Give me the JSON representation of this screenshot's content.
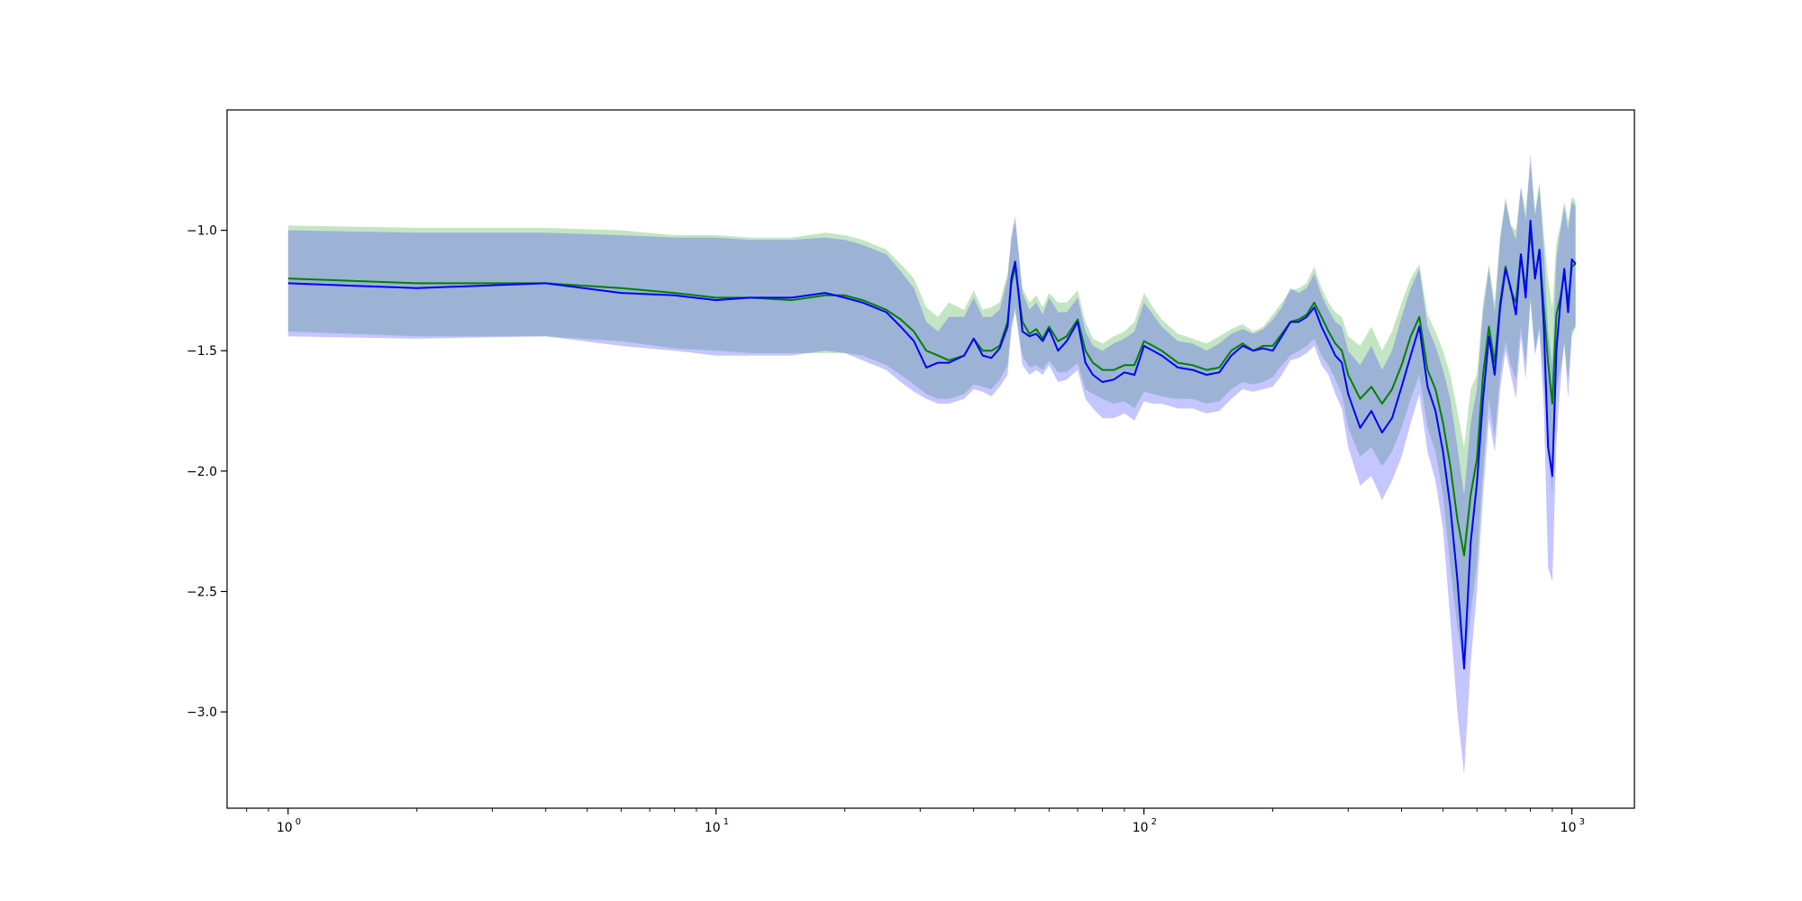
{
  "chart_data": {
    "type": "line",
    "title": "",
    "xlabel": "",
    "ylabel": "",
    "xscale": "log",
    "xlim": [
      0.72,
      1400
    ],
    "ylim": [
      -3.4,
      -0.5
    ],
    "grid": false,
    "legend": "none",
    "xticks": [
      {
        "value": 1,
        "base": "10",
        "exp": "0"
      },
      {
        "value": 10,
        "base": "10",
        "exp": "1"
      },
      {
        "value": 100,
        "base": "10",
        "exp": "2"
      },
      {
        "value": 1000,
        "base": "10",
        "exp": "3"
      }
    ],
    "yticks": [
      {
        "value": -1.0,
        "label": "−1.0"
      },
      {
        "value": -1.5,
        "label": "−1.5"
      },
      {
        "value": -2.0,
        "label": "−2.0"
      },
      {
        "value": -2.5,
        "label": "−2.5"
      },
      {
        "value": -3.0,
        "label": "−3.0"
      }
    ],
    "series": [
      {
        "color": "#008000",
        "band_color": "#2ca02c",
        "band_opacity": 0.28,
        "x": [
          1,
          2,
          4,
          6,
          8,
          10,
          12,
          15,
          18,
          20,
          22,
          25,
          27,
          29,
          31,
          33,
          35,
          38,
          40,
          42,
          44,
          46,
          48,
          49,
          50,
          52,
          54,
          56,
          58,
          60,
          63,
          66,
          70,
          73,
          76,
          80,
          85,
          90,
          95,
          100,
          105,
          110,
          120,
          130,
          140,
          150,
          160,
          170,
          180,
          190,
          200,
          210,
          220,
          230,
          240,
          250,
          260,
          270,
          280,
          290,
          300,
          320,
          340,
          360,
          380,
          400,
          420,
          440,
          460,
          480,
          500,
          520,
          540,
          560,
          580,
          600,
          620,
          640,
          660,
          680,
          700,
          720,
          740,
          760,
          780,
          800,
          820,
          840,
          860,
          880,
          900,
          920,
          940,
          960,
          980,
          1000,
          1020
        ],
        "y": [
          -1.2,
          -1.22,
          -1.22,
          -1.24,
          -1.26,
          -1.28,
          -1.28,
          -1.29,
          -1.27,
          -1.27,
          -1.29,
          -1.33,
          -1.37,
          -1.42,
          -1.5,
          -1.52,
          -1.54,
          -1.52,
          -1.45,
          -1.5,
          -1.5,
          -1.48,
          -1.38,
          -1.22,
          -1.15,
          -1.38,
          -1.43,
          -1.41,
          -1.45,
          -1.4,
          -1.46,
          -1.44,
          -1.37,
          -1.5,
          -1.55,
          -1.58,
          -1.58,
          -1.56,
          -1.56,
          -1.46,
          -1.48,
          -1.5,
          -1.55,
          -1.56,
          -1.58,
          -1.57,
          -1.5,
          -1.47,
          -1.5,
          -1.48,
          -1.48,
          -1.43,
          -1.38,
          -1.37,
          -1.35,
          -1.3,
          -1.36,
          -1.42,
          -1.47,
          -1.5,
          -1.6,
          -1.7,
          -1.65,
          -1.72,
          -1.66,
          -1.56,
          -1.44,
          -1.36,
          -1.58,
          -1.66,
          -1.8,
          -1.98,
          -2.2,
          -2.35,
          -2.1,
          -1.95,
          -1.6,
          -1.4,
          -1.55,
          -1.3,
          -1.15,
          -1.25,
          -1.3,
          -1.1,
          -1.25,
          -1.0,
          -1.2,
          -1.08,
          -1.32,
          -1.55,
          -1.72,
          -1.35,
          -1.28,
          -1.18,
          -1.3,
          -1.15,
          -1.14
        ],
        "upper": [
          -0.98,
          -0.99,
          -0.99,
          -1.0,
          -1.02,
          -1.02,
          -1.03,
          -1.03,
          -1.01,
          -1.02,
          -1.04,
          -1.08,
          -1.14,
          -1.2,
          -1.32,
          -1.36,
          -1.3,
          -1.33,
          -1.25,
          -1.33,
          -1.32,
          -1.3,
          -1.18,
          -1.04,
          -0.96,
          -1.24,
          -1.3,
          -1.27,
          -1.32,
          -1.26,
          -1.3,
          -1.3,
          -1.25,
          -1.38,
          -1.45,
          -1.47,
          -1.44,
          -1.42,
          -1.38,
          -1.26,
          -1.32,
          -1.37,
          -1.43,
          -1.45,
          -1.47,
          -1.44,
          -1.41,
          -1.39,
          -1.42,
          -1.4,
          -1.35,
          -1.3,
          -1.25,
          -1.24,
          -1.22,
          -1.15,
          -1.24,
          -1.3,
          -1.34,
          -1.36,
          -1.44,
          -1.48,
          -1.4,
          -1.5,
          -1.42,
          -1.3,
          -1.2,
          -1.14,
          -1.35,
          -1.42,
          -1.5,
          -1.6,
          -1.75,
          -1.9,
          -1.66,
          -1.6,
          -1.3,
          -1.14,
          -1.3,
          -1.02,
          -0.86,
          -0.98,
          -1.0,
          -0.82,
          -0.92,
          -0.72,
          -0.92,
          -0.8,
          -1.02,
          -1.2,
          -1.32,
          -1.05,
          -0.98,
          -0.88,
          -0.96,
          -0.86,
          -0.88
        ],
        "lower": [
          -1.42,
          -1.44,
          -1.44,
          -1.46,
          -1.49,
          -1.5,
          -1.51,
          -1.51,
          -1.51,
          -1.51,
          -1.52,
          -1.56,
          -1.6,
          -1.64,
          -1.68,
          -1.7,
          -1.7,
          -1.68,
          -1.64,
          -1.65,
          -1.66,
          -1.62,
          -1.56,
          -1.42,
          -1.34,
          -1.52,
          -1.57,
          -1.56,
          -1.58,
          -1.54,
          -1.59,
          -1.59,
          -1.55,
          -1.66,
          -1.68,
          -1.7,
          -1.72,
          -1.71,
          -1.74,
          -1.67,
          -1.68,
          -1.69,
          -1.7,
          -1.7,
          -1.72,
          -1.71,
          -1.66,
          -1.63,
          -1.64,
          -1.63,
          -1.61,
          -1.56,
          -1.52,
          -1.5,
          -1.48,
          -1.45,
          -1.52,
          -1.56,
          -1.62,
          -1.68,
          -1.82,
          -1.94,
          -1.9,
          -1.98,
          -1.92,
          -1.82,
          -1.7,
          -1.6,
          -1.82,
          -1.92,
          -2.1,
          -2.4,
          -2.65,
          -2.82,
          -2.6,
          -2.38,
          -2.0,
          -1.7,
          -1.86,
          -1.6,
          -1.46,
          -1.56,
          -1.62,
          -1.4,
          -1.56,
          -1.3,
          -1.5,
          -1.4,
          -1.64,
          -1.9,
          -2.1,
          -1.66,
          -1.58,
          -1.48,
          -1.62,
          -1.44,
          -1.4
        ]
      },
      {
        "color": "#0000ff",
        "band_color": "#4040ff",
        "band_opacity": 0.3,
        "x": [
          1,
          2,
          4,
          6,
          8,
          10,
          12,
          15,
          18,
          20,
          22,
          25,
          27,
          29,
          31,
          33,
          35,
          38,
          40,
          42,
          44,
          46,
          48,
          49,
          50,
          52,
          54,
          56,
          58,
          60,
          63,
          66,
          70,
          73,
          76,
          80,
          85,
          90,
          95,
          100,
          105,
          110,
          120,
          130,
          140,
          150,
          160,
          170,
          180,
          190,
          200,
          210,
          220,
          230,
          240,
          250,
          260,
          270,
          280,
          290,
          300,
          320,
          340,
          360,
          380,
          400,
          420,
          440,
          460,
          480,
          500,
          520,
          540,
          560,
          580,
          600,
          620,
          640,
          660,
          680,
          700,
          720,
          740,
          760,
          780,
          800,
          820,
          840,
          860,
          880,
          900,
          920,
          940,
          960,
          980,
          1000,
          1020
        ],
        "y": [
          -1.22,
          -1.24,
          -1.22,
          -1.26,
          -1.27,
          -1.29,
          -1.28,
          -1.28,
          -1.26,
          -1.28,
          -1.3,
          -1.34,
          -1.4,
          -1.46,
          -1.57,
          -1.55,
          -1.55,
          -1.52,
          -1.45,
          -1.52,
          -1.53,
          -1.49,
          -1.4,
          -1.2,
          -1.13,
          -1.42,
          -1.44,
          -1.43,
          -1.46,
          -1.41,
          -1.5,
          -1.46,
          -1.38,
          -1.55,
          -1.6,
          -1.63,
          -1.62,
          -1.59,
          -1.6,
          -1.48,
          -1.5,
          -1.52,
          -1.57,
          -1.58,
          -1.6,
          -1.59,
          -1.52,
          -1.48,
          -1.5,
          -1.49,
          -1.5,
          -1.44,
          -1.38,
          -1.38,
          -1.36,
          -1.32,
          -1.4,
          -1.46,
          -1.52,
          -1.55,
          -1.68,
          -1.82,
          -1.75,
          -1.84,
          -1.78,
          -1.65,
          -1.52,
          -1.4,
          -1.65,
          -1.75,
          -1.92,
          -2.15,
          -2.45,
          -2.82,
          -2.3,
          -2.05,
          -1.7,
          -1.44,
          -1.6,
          -1.32,
          -1.16,
          -1.24,
          -1.35,
          -1.1,
          -1.28,
          -0.96,
          -1.2,
          -1.08,
          -1.4,
          -1.9,
          -2.02,
          -1.5,
          -1.3,
          -1.16,
          -1.34,
          -1.12,
          -1.14
        ],
        "upper": [
          -1.0,
          -1.01,
          -1.01,
          -1.02,
          -1.03,
          -1.03,
          -1.04,
          -1.04,
          -1.03,
          -1.04,
          -1.06,
          -1.1,
          -1.17,
          -1.24,
          -1.38,
          -1.42,
          -1.36,
          -1.36,
          -1.28,
          -1.36,
          -1.36,
          -1.33,
          -1.2,
          -1.02,
          -0.94,
          -1.26,
          -1.33,
          -1.3,
          -1.35,
          -1.28,
          -1.34,
          -1.34,
          -1.28,
          -1.42,
          -1.48,
          -1.5,
          -1.47,
          -1.45,
          -1.42,
          -1.3,
          -1.35,
          -1.4,
          -1.46,
          -1.47,
          -1.5,
          -1.47,
          -1.43,
          -1.41,
          -1.43,
          -1.41,
          -1.37,
          -1.32,
          -1.24,
          -1.26,
          -1.24,
          -1.18,
          -1.27,
          -1.33,
          -1.38,
          -1.4,
          -1.5,
          -1.56,
          -1.48,
          -1.58,
          -1.5,
          -1.36,
          -1.24,
          -1.16,
          -1.4,
          -1.48,
          -1.58,
          -1.7,
          -1.9,
          -2.1,
          -1.8,
          -1.66,
          -1.34,
          -1.16,
          -1.34,
          -1.04,
          -0.88,
          -0.98,
          -1.04,
          -0.82,
          -0.96,
          -0.68,
          -0.94,
          -0.82,
          -1.08,
          -1.42,
          -1.56,
          -1.12,
          -1.0,
          -0.9,
          -1.0,
          -0.88,
          -0.9
        ],
        "lower": [
          -1.44,
          -1.45,
          -1.44,
          -1.48,
          -1.5,
          -1.52,
          -1.52,
          -1.52,
          -1.5,
          -1.51,
          -1.54,
          -1.58,
          -1.63,
          -1.67,
          -1.7,
          -1.72,
          -1.72,
          -1.7,
          -1.66,
          -1.67,
          -1.69,
          -1.65,
          -1.6,
          -1.4,
          -1.32,
          -1.56,
          -1.6,
          -1.58,
          -1.6,
          -1.56,
          -1.63,
          -1.62,
          -1.58,
          -1.7,
          -1.74,
          -1.78,
          -1.78,
          -1.76,
          -1.79,
          -1.71,
          -1.72,
          -1.72,
          -1.74,
          -1.74,
          -1.76,
          -1.75,
          -1.7,
          -1.66,
          -1.67,
          -1.66,
          -1.65,
          -1.6,
          -1.54,
          -1.53,
          -1.51,
          -1.48,
          -1.56,
          -1.6,
          -1.68,
          -1.74,
          -1.9,
          -2.06,
          -2.02,
          -2.12,
          -2.04,
          -1.94,
          -1.8,
          -1.68,
          -1.92,
          -2.04,
          -2.24,
          -2.62,
          -3.0,
          -3.26,
          -2.8,
          -2.5,
          -2.1,
          -1.78,
          -1.92,
          -1.66,
          -1.5,
          -1.6,
          -1.7,
          -1.44,
          -1.62,
          -1.28,
          -1.52,
          -1.42,
          -1.74,
          -2.4,
          -2.46,
          -1.88,
          -1.64,
          -1.46,
          -1.7,
          -1.42,
          -1.4
        ]
      }
    ]
  }
}
